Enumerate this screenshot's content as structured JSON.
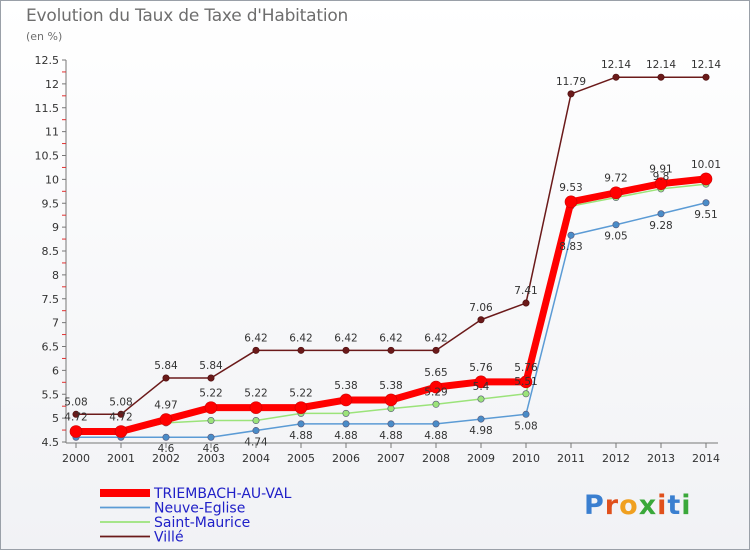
{
  "title": "Evolution du Taux de Taxe d'Habitation",
  "unit_label": "(en %)",
  "logo_text": "Proxiti",
  "colors": {
    "TRIEMBACH-AU-VAL": "#ff0000",
    "Neuve-Eglise": "#5b9bd5",
    "Saint-Maurice": "#9be37a",
    "Villé": "#6b1a1a"
  },
  "chart_data": {
    "type": "line",
    "title": "Evolution du Taux de Taxe d'Habitation",
    "ylabel": "(en %)",
    "xlabel": "",
    "ylim": [
      4.5,
      12.5
    ],
    "yticks": [
      "4.5",
      "5",
      "5.5",
      "6",
      "6.5",
      "7",
      "7.5",
      "8",
      "8.5",
      "9",
      "9.5",
      "10",
      "10.5",
      "11",
      "11.5",
      "12",
      "12.5"
    ],
    "x": [
      "2000",
      "2001",
      "2002",
      "2003",
      "2004",
      "2005",
      "2006",
      "2007",
      "2008",
      "2009",
      "2010",
      "2011",
      "2012",
      "2013",
      "2014"
    ],
    "grid": false,
    "legend_position": "bottom-left",
    "series": [
      {
        "name": "Villé",
        "values": [
          5.08,
          5.08,
          5.84,
          5.84,
          6.42,
          6.42,
          6.42,
          6.42,
          6.42,
          7.06,
          7.41,
          11.79,
          12.14,
          12.14,
          12.14
        ],
        "labels": [
          "5.08",
          "5.08",
          "5.84",
          "5.84",
          "6.42",
          "6.42",
          "6.42",
          "6.42",
          "6.42",
          "7.06",
          "7.41",
          "11.79",
          "12.14",
          "12.14",
          "12.14"
        ]
      },
      {
        "name": "Saint-Maurice",
        "values": [
          4.7,
          4.7,
          4.9,
          4.95,
          4.95,
          5.1,
          5.1,
          5.2,
          5.29,
          5.4,
          5.51,
          9.44,
          9.62,
          9.8,
          9.9
        ],
        "labels": [
          "",
          "",
          "",
          "",
          "",
          "",
          "",
          "",
          "5.29",
          "5.4",
          "5.51",
          "",
          "",
          "9.8",
          ""
        ]
      },
      {
        "name": "Neuve-Eglise",
        "values": [
          4.6,
          4.6,
          4.6,
          4.6,
          4.74,
          4.88,
          4.88,
          4.88,
          4.88,
          4.98,
          5.08,
          8.83,
          9.05,
          9.28,
          9.51
        ],
        "labels": [
          "",
          "",
          "4.6",
          "4.6",
          "4.74",
          "4.88",
          "4.88",
          "4.88",
          "4.88",
          "4.98",
          "5.08",
          "8.83",
          "9.05",
          "9.28",
          "9.51"
        ]
      },
      {
        "name": "TRIEMBACH-AU-VAL",
        "values": [
          4.72,
          4.72,
          4.97,
          5.22,
          5.22,
          5.22,
          5.38,
          5.38,
          5.65,
          5.76,
          5.76,
          9.53,
          9.72,
          9.91,
          10.01
        ],
        "labels": [
          "4.72",
          "4.72",
          "4.97",
          "5.22",
          "5.22",
          "5.22",
          "5.38",
          "5.38",
          "5.65",
          "5.76",
          "5.76",
          "9.53",
          "9.72",
          "9.91",
          "10.01"
        ]
      }
    ],
    "legend": [
      "TRIEMBACH-AU-VAL",
      "Neuve-Eglise",
      "Saint-Maurice",
      "Villé"
    ]
  }
}
